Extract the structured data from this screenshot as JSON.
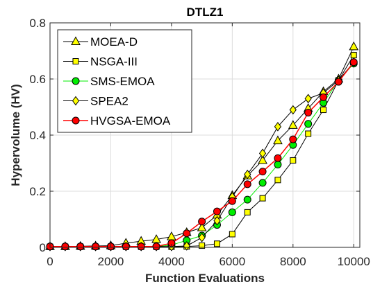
{
  "chart_data": {
    "type": "line",
    "title": "DTLZ1",
    "xlabel": "Function Evaluations",
    "ylabel": "Hypervolume (HV)",
    "xlim": [
      0,
      10200
    ],
    "ylim": [
      0,
      0.8
    ],
    "xticks": [
      0,
      2000,
      4000,
      6000,
      8000,
      10000
    ],
    "xtick_labels": [
      "0",
      "2000",
      "4000",
      "6000",
      "8000",
      "10000"
    ],
    "yticks": [
      0,
      0.2,
      0.4,
      0.6,
      0.8
    ],
    "ytick_labels": [
      "0",
      "0.2",
      "0.4",
      "0.6",
      "0.8"
    ],
    "grid": true,
    "legend_position": "top-left",
    "x": [
      0,
      500,
      1000,
      1500,
      2000,
      2500,
      3000,
      3500,
      4000,
      4500,
      5000,
      5500,
      6000,
      6500,
      7000,
      7500,
      8000,
      8500,
      9000,
      9500,
      10000
    ],
    "series": [
      {
        "name": "MOEA-D",
        "marker": "triangle",
        "color": "#000000",
        "fill": "#ffff00",
        "values": [
          0.003,
          0.003,
          0.004,
          0.005,
          0.006,
          0.015,
          0.022,
          0.028,
          0.038,
          0.053,
          0.07,
          0.115,
          0.185,
          0.255,
          0.31,
          0.38,
          0.435,
          0.495,
          0.555,
          0.6,
          0.715
        ]
      },
      {
        "name": "NSGA-III",
        "marker": "square",
        "color": "#000000",
        "fill": "#ffff00",
        "values": [
          0.002,
          0.002,
          0.002,
          0.002,
          0.002,
          0.002,
          0.002,
          0.002,
          0.002,
          0.003,
          0.006,
          0.013,
          0.047,
          0.125,
          0.175,
          0.24,
          0.31,
          0.405,
          0.49,
          0.595,
          0.685
        ]
      },
      {
        "name": "SMS-EMOA",
        "marker": "circle",
        "color": "#00ee00",
        "fill": "#00ee00",
        "values": [
          0.003,
          0.003,
          0.003,
          0.003,
          0.003,
          0.003,
          0.003,
          0.003,
          0.008,
          0.025,
          0.042,
          0.08,
          0.125,
          0.17,
          0.23,
          0.295,
          0.365,
          0.44,
          0.515,
          0.595,
          0.655
        ]
      },
      {
        "name": "SPEA2",
        "marker": "diamond",
        "color": "#000000",
        "fill": "#ffff00",
        "values": [
          0.003,
          0.003,
          0.003,
          0.003,
          0.003,
          0.003,
          0.003,
          0.003,
          0.003,
          0.005,
          0.035,
          0.095,
          0.18,
          0.26,
          0.335,
          0.43,
          0.49,
          0.53,
          0.55,
          0.595,
          0.66
        ]
      },
      {
        "name": "HVGSA-EMOA",
        "marker": "circle",
        "color": "#ff0000",
        "fill": "#ff0000",
        "values": [
          0.003,
          0.003,
          0.003,
          0.003,
          0.003,
          0.003,
          0.003,
          0.003,
          0.015,
          0.05,
          0.092,
          0.128,
          0.165,
          0.225,
          0.27,
          0.318,
          0.385,
          0.48,
          0.535,
          0.59,
          0.66
        ]
      }
    ]
  }
}
